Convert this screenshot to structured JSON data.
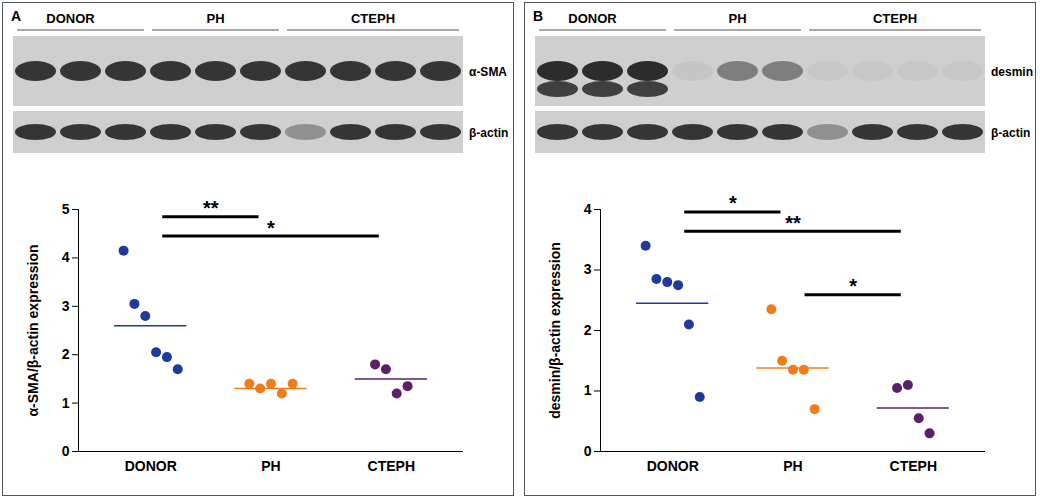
{
  "chart_data": [
    {
      "type": "scatter",
      "title": "A",
      "annotations": [
        "α-SMA",
        "β-actin"
      ],
      "categories": [
        "DONOR",
        "PH",
        "CTEPH"
      ],
      "colors": [
        "#1f3a9a",
        "#f07c1a",
        "#5b1f6b"
      ],
      "values": [
        [
          4.15,
          3.05,
          2.8,
          2.05,
          1.95,
          1.7
        ],
        [
          1.4,
          1.3,
          1.4,
          1.2,
          1.4
        ],
        [
          1.8,
          1.7,
          1.2,
          1.35
        ]
      ],
      "means": [
        2.6,
        1.3,
        1.5
      ],
      "comparisons": [
        {
          "groups": [
            "DONOR",
            "CTEPH"
          ],
          "label": "*"
        },
        {
          "groups": [
            "DONOR",
            "PH"
          ],
          "label": "**"
        }
      ],
      "ylabel": "α-SMA/β-actin expression",
      "ylim": [
        0,
        5
      ],
      "yticks": [
        0,
        1,
        2,
        3,
        4,
        5
      ]
    },
    {
      "type": "scatter",
      "title": "B",
      "annotations": [
        "desmin",
        "β-actin"
      ],
      "categories": [
        "DONOR",
        "PH",
        "CTEPH"
      ],
      "colors": [
        "#1f3a9a",
        "#f07c1a",
        "#5b1f6b"
      ],
      "values": [
        [
          3.4,
          2.85,
          2.8,
          2.75,
          2.1,
          0.9
        ],
        [
          2.35,
          1.5,
          1.35,
          1.35,
          0.7
        ],
        [
          1.05,
          1.1,
          0.55,
          0.3
        ]
      ],
      "means": [
        2.45,
        1.38,
        0.72
      ],
      "comparisons": [
        {
          "groups": [
            "DONOR",
            "CTEPH"
          ],
          "label": "**"
        },
        {
          "groups": [
            "DONOR",
            "PH"
          ],
          "label": "*"
        },
        {
          "groups": [
            "PH",
            "CTEPH"
          ],
          "label": "*"
        }
      ],
      "ylabel": "desmin/β-actin expression",
      "ylim": [
        0,
        4
      ],
      "yticks": [
        0,
        1,
        2,
        3,
        4
      ]
    }
  ]
}
